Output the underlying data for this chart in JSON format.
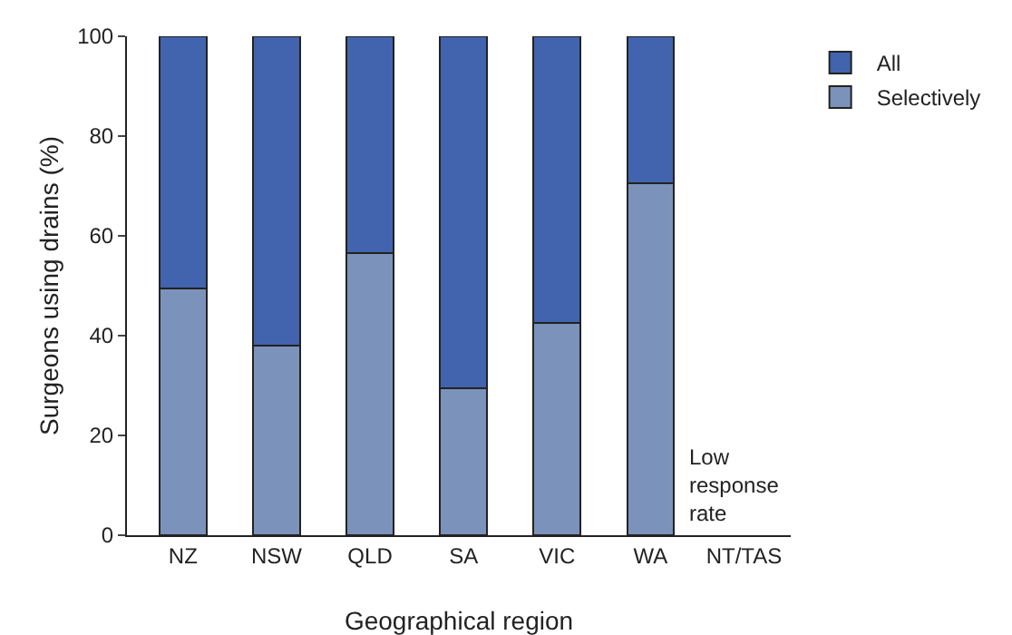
{
  "chart_data": {
    "type": "bar",
    "stacked": true,
    "categories": [
      "NZ",
      "NSW",
      "QLD",
      "SA",
      "VIC",
      "WA",
      "NT/TAS"
    ],
    "series": [
      {
        "name": "Selectively",
        "color": "#7b93bb",
        "values": [
          49.5,
          38,
          56.5,
          29.5,
          42.5,
          70.5,
          null
        ]
      },
      {
        "name": "All",
        "color": "#4263ad",
        "values": [
          50.5,
          62,
          43.5,
          70.5,
          57.5,
          29.5,
          null
        ]
      }
    ],
    "xlabel": "Geographical region",
    "ylabel": "Surgeons using drains (%)",
    "ylim": [
      0,
      100
    ],
    "yticks": [
      0,
      20,
      40,
      60,
      80,
      100
    ],
    "annotations": [
      "Low\nresponse\nrate"
    ],
    "grid": false,
    "legend": "top right"
  }
}
